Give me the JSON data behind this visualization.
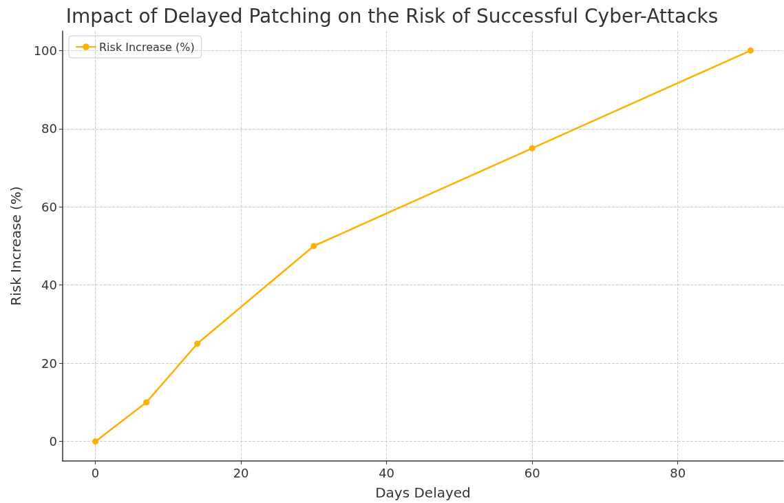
{
  "chart_data": {
    "type": "line",
    "title": "Impact of Delayed Patching on the Risk of Successful Cyber-Attacks",
    "xlabel": "Days Delayed",
    "ylabel": "Risk Increase (%)",
    "x": [
      0,
      7,
      14,
      30,
      60,
      90
    ],
    "series": [
      {
        "name": "Risk Increase (%)",
        "color": "#ffb000",
        "values": [
          0,
          10,
          25,
          50,
          75,
          100
        ]
      }
    ],
    "xlim": [
      -4.5,
      94.5
    ],
    "xticks": [
      0,
      20,
      40,
      60,
      80
    ],
    "ylim": [
      -5,
      105
    ],
    "yticks": [
      0,
      20,
      40,
      60,
      80,
      100
    ],
    "grid": true,
    "legend": "top left",
    "marker": "circle",
    "line_style": "solid"
  }
}
